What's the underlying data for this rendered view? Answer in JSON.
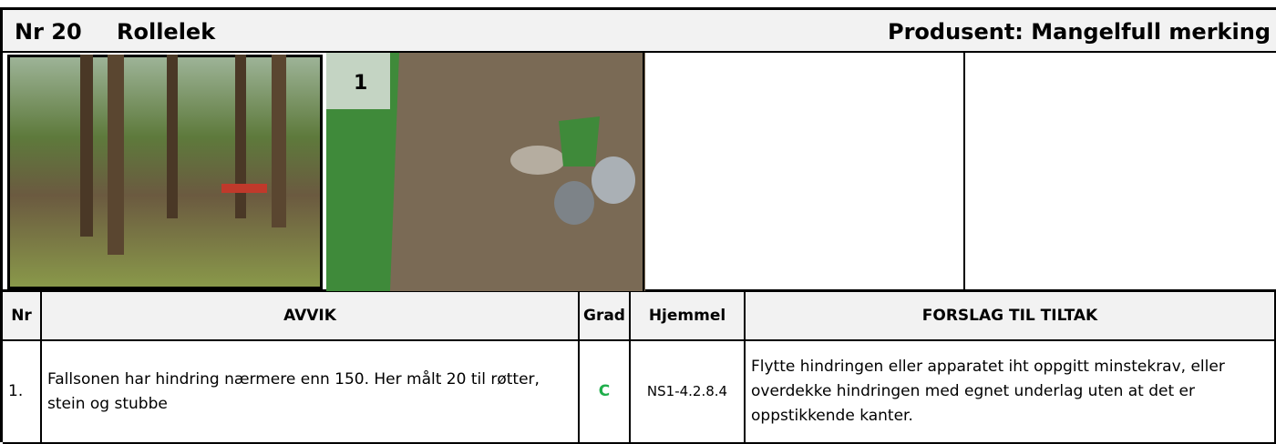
{
  "header": {
    "number": "Nr 20",
    "title": "Rollelek",
    "producer": "Produsent: Mangelfull merking"
  },
  "photos": [
    {
      "label": "1"
    }
  ],
  "table": {
    "columns": [
      "Nr",
      "AVVIK",
      "Grad",
      "Hjemmel",
      "FORSLAG TIL TILTAK"
    ],
    "rows": [
      [
        "1.",
        "Fallsonen har hindring nærmere enn 150. Her målt 20 til røtter, stein og stubbe",
        "C",
        "NS1-4.2.8.4",
        "Flytte hindringen eller apparatet iht oppgitt minstekrav, eller overdekke hindringen med egnet underlag uten at det er oppstikkende kanter."
      ]
    ]
  }
}
